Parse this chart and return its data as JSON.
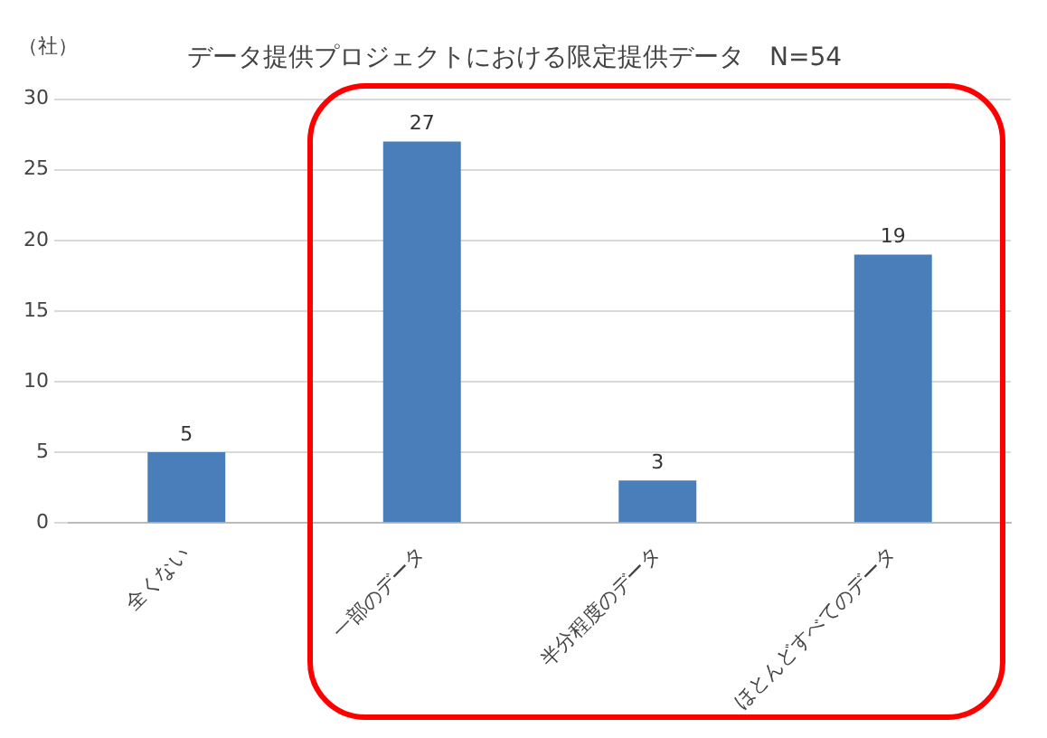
{
  "chart_data": {
    "type": "bar",
    "title": "データ提供プロジェクトにおける限定提供データ　N=54",
    "ylabel": "（社）",
    "categories": [
      "全くない",
      "一部のデータ",
      "半分程度のデータ",
      "ほとんどすべてのデータ"
    ],
    "values": [
      5,
      27,
      3,
      19
    ],
    "color": "#4a7ebb",
    "ylim": [
      0,
      30
    ],
    "yticks": [
      0,
      5,
      10,
      15,
      20,
      25,
      30
    ],
    "grid": "y",
    "data_labels": true,
    "legend": false
  }
}
